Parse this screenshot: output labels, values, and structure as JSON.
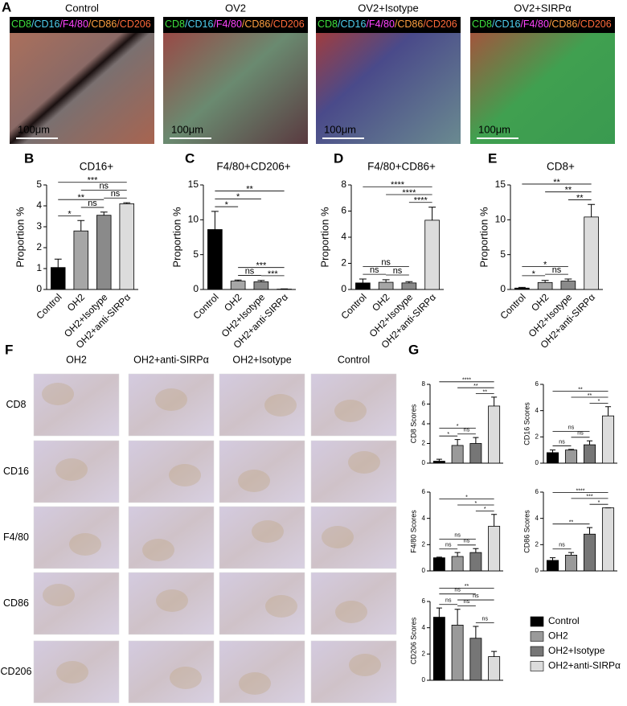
{
  "panel_a": {
    "label": "A",
    "stain": [
      {
        "text": "CD8",
        "color": "#3ee03e"
      },
      {
        "text": "/CD16",
        "color": "#4fd0f0"
      },
      {
        "text": "/F4/80",
        "color": "#ff44ff"
      },
      {
        "text": "/CD86",
        "color": "#ffa040"
      },
      {
        "text": "/CD206",
        "color": "#ff6a3a"
      }
    ],
    "scale": "100μm",
    "images": [
      "Control",
      "OV2",
      "OV2+Isotype",
      "OV2+SIRPα"
    ]
  },
  "panel_f": {
    "label": "F",
    "columns": [
      "OH2",
      "OH2+anti-SIRPα",
      "OH2+Isotype",
      "Control"
    ],
    "rows": [
      "CD8",
      "CD16",
      "F4/80",
      "CD86",
      "CD206"
    ]
  },
  "panel_g": {
    "label": "G"
  },
  "chart_data": [
    {
      "type": "bar",
      "label": "B",
      "title": "CD16+",
      "ylabel": "Proportion %",
      "categories": [
        "Control",
        "OH2",
        "OH2+Isotype",
        "OH2+anti-SIRPα"
      ],
      "colors": [
        "#000000",
        "#a6a6a6",
        "#8a8a8a",
        "#dcdcdc"
      ],
      "values": [
        1.05,
        2.8,
        3.55,
        4.1
      ],
      "errors": [
        0.4,
        0.5,
        0.15,
        0.05
      ],
      "ylim": [
        0,
        5
      ],
      "yticks": [
        0,
        1,
        2,
        3,
        4,
        5
      ],
      "comparisons": [
        {
          "groups": [
            0,
            1
          ],
          "label": "*"
        },
        {
          "groups": [
            1,
            2
          ],
          "label": "ns"
        },
        {
          "groups": [
            0,
            2
          ],
          "label": "**"
        },
        {
          "groups": [
            2,
            3
          ],
          "label": "ns"
        },
        {
          "groups": [
            1,
            3
          ],
          "label": "ns"
        },
        {
          "groups": [
            0,
            3
          ],
          "label": "***"
        }
      ]
    },
    {
      "type": "bar",
      "label": "C",
      "title": "F4/80+CD206+",
      "ylabel": "Proportion %",
      "categories": [
        "Control",
        "OH2",
        "OH2+Isotype",
        "OH2+anti-SIRPα"
      ],
      "colors": [
        "#000000",
        "#a6a6a6",
        "#8a8a8a",
        "#dcdcdc"
      ],
      "values": [
        8.6,
        1.2,
        1.1,
        0.05
      ],
      "errors": [
        2.6,
        0.15,
        0.2,
        0.03
      ],
      "ylim": [
        0,
        15
      ],
      "yticks": [
        0,
        5,
        10,
        15
      ],
      "comparisons": [
        {
          "groups": [
            2,
            3
          ],
          "label": "***"
        },
        {
          "groups": [
            1,
            2
          ],
          "label": "ns"
        },
        {
          "groups": [
            1,
            3
          ],
          "label": "***"
        },
        {
          "groups": [
            0,
            1
          ],
          "label": "*"
        },
        {
          "groups": [
            0,
            2
          ],
          "label": "*"
        },
        {
          "groups": [
            0,
            3
          ],
          "label": "**"
        }
      ]
    },
    {
      "type": "bar",
      "label": "D",
      "title": "F4/80+CD86+",
      "ylabel": "Proportion %",
      "categories": [
        "Control",
        "OH2",
        "OH2+Isotype",
        "OH2+anti-SIRPα"
      ],
      "colors": [
        "#000000",
        "#a6a6a6",
        "#8a8a8a",
        "#dcdcdc"
      ],
      "values": [
        0.5,
        0.55,
        0.5,
        5.3
      ],
      "errors": [
        0.3,
        0.2,
        0.1,
        1.0
      ],
      "ylim": [
        0,
        8
      ],
      "yticks": [
        0,
        2,
        4,
        6,
        8
      ],
      "comparisons": [
        {
          "groups": [
            0,
            1
          ],
          "label": "ns"
        },
        {
          "groups": [
            1,
            2
          ],
          "label": "ns"
        },
        {
          "groups": [
            0,
            2
          ],
          "label": "ns"
        },
        {
          "groups": [
            2,
            3
          ],
          "label": "****"
        },
        {
          "groups": [
            1,
            3
          ],
          "label": "****"
        },
        {
          "groups": [
            0,
            3
          ],
          "label": "****"
        }
      ]
    },
    {
      "type": "bar",
      "label": "E",
      "title": "CD8+",
      "ylabel": "Proportion %",
      "categories": [
        "Control",
        "OH2",
        "OH2+Isotype",
        "OH2+anti-SIRPα"
      ],
      "colors": [
        "#000000",
        "#a6a6a6",
        "#8a8a8a",
        "#dcdcdc"
      ],
      "values": [
        0.2,
        1.0,
        1.2,
        10.4
      ],
      "errors": [
        0.1,
        0.3,
        0.3,
        1.8
      ],
      "ylim": [
        0,
        15
      ],
      "yticks": [
        0,
        5,
        10,
        15
      ],
      "comparisons": [
        {
          "groups": [
            0,
            1
          ],
          "label": "*"
        },
        {
          "groups": [
            1,
            2
          ],
          "label": "ns"
        },
        {
          "groups": [
            0,
            2
          ],
          "label": "*"
        },
        {
          "groups": [
            2,
            3
          ],
          "label": "**"
        },
        {
          "groups": [
            1,
            3
          ],
          "label": "**"
        },
        {
          "groups": [
            0,
            3
          ],
          "label": "**"
        }
      ]
    },
    {
      "type": "bar",
      "ylabel": "CD8 Scores",
      "categories": [
        "Control",
        "OH2",
        "OH2+Isotype",
        "OH2+anti-SIRPα"
      ],
      "colors": [
        "#000000",
        "#9a9a9a",
        "#767676",
        "#dcdcdc"
      ],
      "values": [
        0.2,
        1.8,
        2.0,
        5.8
      ],
      "errors": [
        0.2,
        0.6,
        0.6,
        0.9
      ],
      "ylim": [
        0,
        8
      ],
      "yticks": [
        0,
        2,
        4,
        6,
        8
      ],
      "comparisons": [
        {
          "groups": [
            0,
            1
          ],
          "label": "*"
        },
        {
          "groups": [
            1,
            2
          ],
          "label": "ns"
        },
        {
          "groups": [
            0,
            2
          ],
          "label": "*"
        },
        {
          "groups": [
            2,
            3
          ],
          "label": "**"
        },
        {
          "groups": [
            1,
            3
          ],
          "label": "**"
        },
        {
          "groups": [
            0,
            3
          ],
          "label": "****"
        }
      ]
    },
    {
      "type": "bar",
      "ylabel": "CD16 Scores",
      "categories": [
        "Control",
        "OH2",
        "OH2+Isotype",
        "OH2+anti-SIRPα"
      ],
      "colors": [
        "#000000",
        "#9a9a9a",
        "#767676",
        "#dcdcdc"
      ],
      "values": [
        0.8,
        1.0,
        1.4,
        3.6
      ],
      "errors": [
        0.2,
        0.05,
        0.3,
        0.7
      ],
      "ylim": [
        0,
        6
      ],
      "yticks": [
        0,
        2,
        4,
        6
      ],
      "comparisons": [
        {
          "groups": [
            0,
            1
          ],
          "label": "ns"
        },
        {
          "groups": [
            1,
            2
          ],
          "label": "ns"
        },
        {
          "groups": [
            0,
            2
          ],
          "label": "ns"
        },
        {
          "groups": [
            2,
            3
          ],
          "label": "*"
        },
        {
          "groups": [
            1,
            3
          ],
          "label": "**"
        },
        {
          "groups": [
            0,
            3
          ],
          "label": "**"
        }
      ]
    },
    {
      "type": "bar",
      "ylabel": "F4/80 Scores",
      "categories": [
        "Control",
        "OH2",
        "OH2+Isotype",
        "OH2+anti-SIRPα"
      ],
      "colors": [
        "#000000",
        "#9a9a9a",
        "#767676",
        "#dcdcdc"
      ],
      "values": [
        1.0,
        1.1,
        1.4,
        3.4
      ],
      "errors": [
        0.05,
        0.3,
        0.3,
        0.9
      ],
      "ylim": [
        0,
        6
      ],
      "yticks": [
        0,
        2,
        4,
        6
      ],
      "comparisons": [
        {
          "groups": [
            0,
            1
          ],
          "label": "ns"
        },
        {
          "groups": [
            1,
            2
          ],
          "label": "ns"
        },
        {
          "groups": [
            0,
            2
          ],
          "label": "ns"
        },
        {
          "groups": [
            2,
            3
          ],
          "label": "*"
        },
        {
          "groups": [
            1,
            3
          ],
          "label": "*"
        },
        {
          "groups": [
            0,
            3
          ],
          "label": "*"
        }
      ]
    },
    {
      "type": "bar",
      "ylabel": "CD86 Scores",
      "categories": [
        "Control",
        "OH2",
        "OH2+Isotype",
        "OH2+anti-SIRPα"
      ],
      "colors": [
        "#000000",
        "#9a9a9a",
        "#767676",
        "#dcdcdc"
      ],
      "values": [
        0.8,
        1.2,
        2.8,
        4.8
      ],
      "errors": [
        0.2,
        0.2,
        0.5,
        0
      ],
      "ylim": [
        0,
        6
      ],
      "yticks": [
        0,
        2,
        4,
        6
      ],
      "comparisons": [
        {
          "groups": [
            0,
            1
          ],
          "label": "ns"
        },
        {
          "groups": [
            0,
            2
          ],
          "label": "**"
        },
        {
          "groups": [
            2,
            3
          ],
          "label": "*"
        },
        {
          "groups": [
            1,
            3
          ],
          "label": "***"
        },
        {
          "groups": [
            0,
            3
          ],
          "label": "****"
        }
      ]
    },
    {
      "type": "bar",
      "ylabel": "CD206 Scores",
      "categories": [
        "Control",
        "OH2",
        "OH2+Isotype",
        "OH2+anti-SIRPα"
      ],
      "colors": [
        "#000000",
        "#9a9a9a",
        "#767676",
        "#dcdcdc"
      ],
      "values": [
        4.8,
        4.2,
        3.2,
        1.8
      ],
      "errors": [
        0.7,
        1.2,
        0.9,
        0.4
      ],
      "ylim": [
        0,
        6
      ],
      "yticks": [
        0,
        2,
        4,
        6
      ],
      "comparisons": [
        {
          "groups": [
            2,
            3
          ],
          "label": "ns"
        },
        {
          "groups": [
            1,
            2
          ],
          "label": "ns"
        },
        {
          "groups": [
            0,
            1
          ],
          "label": "ns"
        },
        {
          "groups": [
            1,
            3
          ],
          "label": "ns"
        },
        {
          "groups": [
            0,
            2
          ],
          "label": "ns"
        },
        {
          "groups": [
            0,
            3
          ],
          "label": "**"
        }
      ]
    }
  ]
}
